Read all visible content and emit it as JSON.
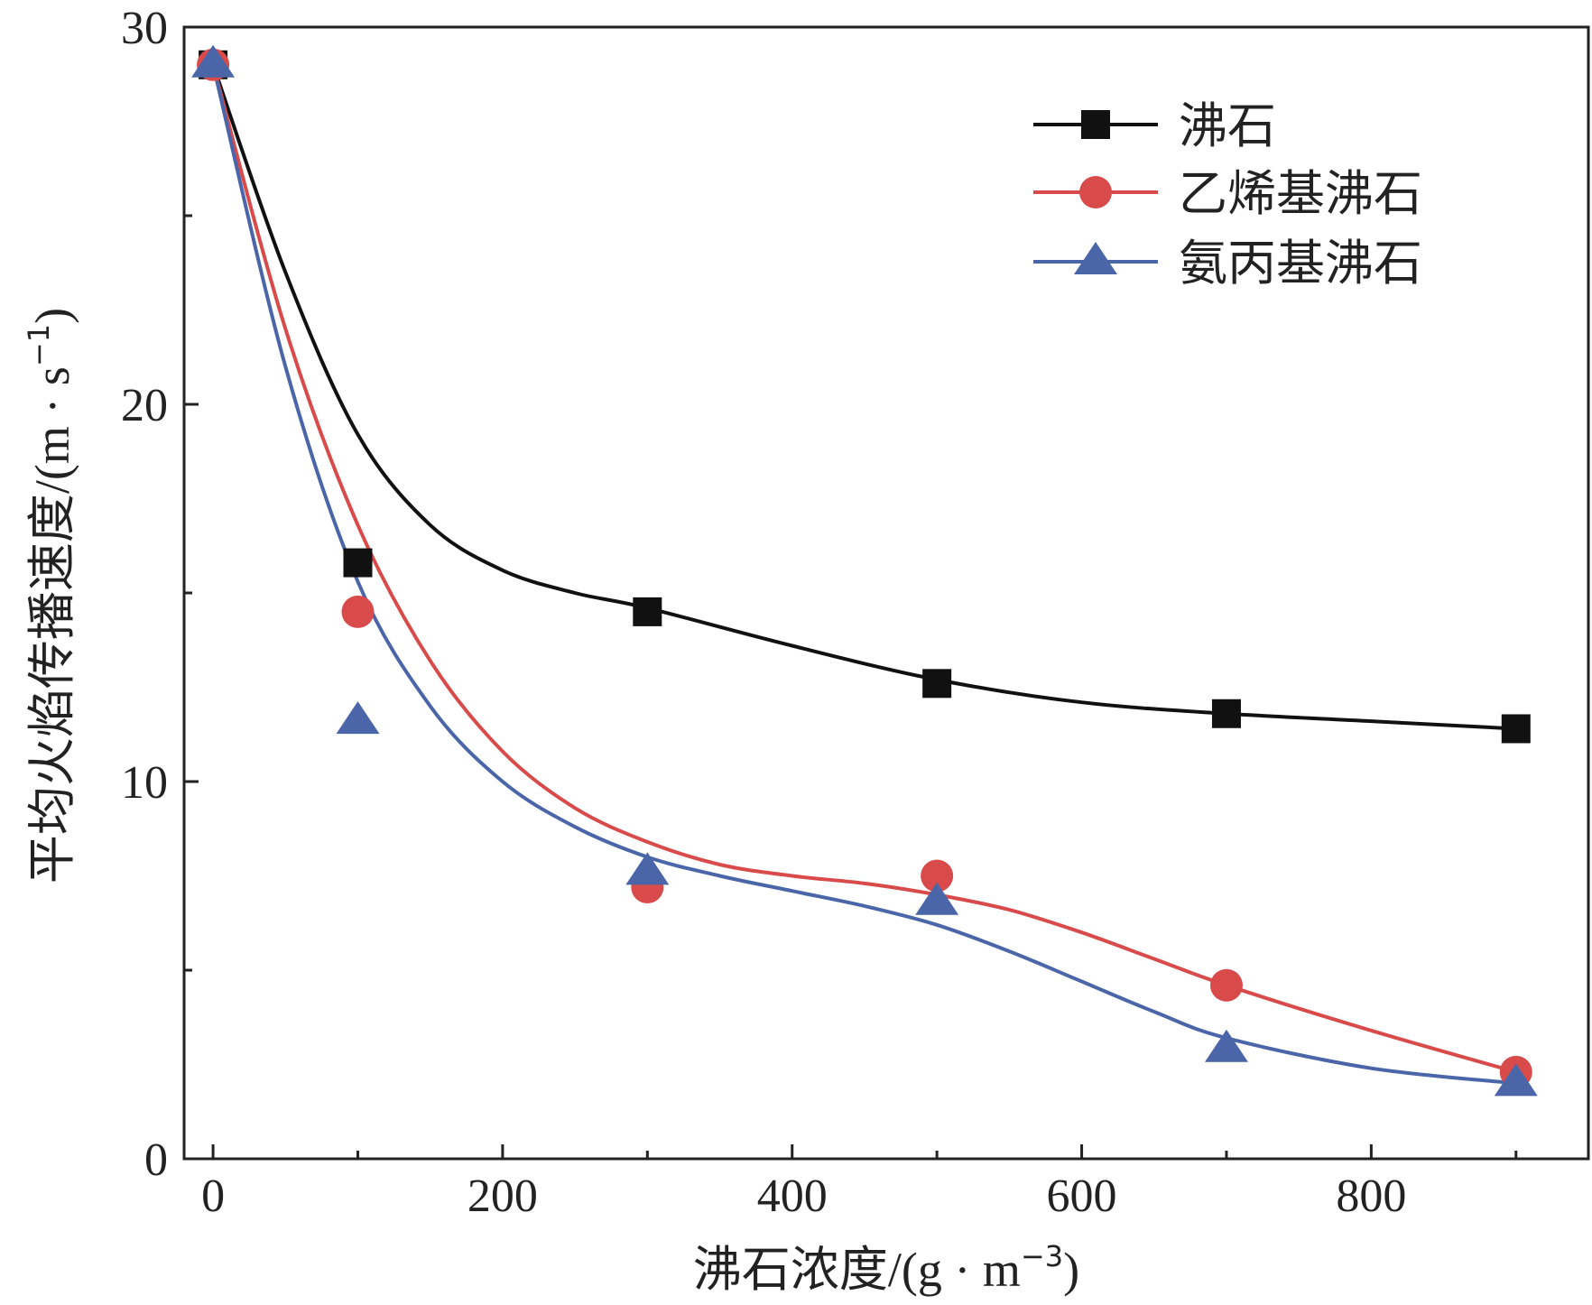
{
  "chart_data": {
    "type": "line",
    "title": "",
    "xlabel": {
      "text": "沸石浓度",
      "unit_open": "/(g · m",
      "unit_sup": "−3",
      "unit_close": ")"
    },
    "ylabel": {
      "text": "平均火焰传播速度",
      "unit_open": "/(m · s",
      "unit_sup": "−1",
      "unit_close": ")"
    },
    "xlim": [
      -20,
      950
    ],
    "ylim": [
      0,
      30
    ],
    "x_ticks": [
      0,
      200,
      400,
      600,
      800
    ],
    "x_tick_labels": [
      "0",
      "200",
      "400",
      "600",
      "800"
    ],
    "y_ticks": [
      0,
      10,
      20,
      30
    ],
    "y_tick_labels": [
      "0",
      "10",
      "20",
      "30"
    ],
    "y_minor_ticks": [
      5,
      15,
      25
    ],
    "x_minor_ticks": [
      100,
      300,
      500,
      700,
      900
    ],
    "legend_position": "top-right",
    "series": [
      {
        "name": "沸石",
        "color": "#111111",
        "marker": "square",
        "x": [
          0,
          100,
          300,
          500,
          700,
          900
        ],
        "y": [
          29.0,
          15.8,
          14.5,
          12.6,
          11.8,
          11.4
        ],
        "fit_x": [
          0,
          50,
          100,
          150,
          200,
          250,
          300,
          400,
          500,
          600,
          700,
          800,
          900
        ],
        "fit_y": [
          29.0,
          23.5,
          19.2,
          16.8,
          15.6,
          15.0,
          14.6,
          13.6,
          12.7,
          12.1,
          11.8,
          11.6,
          11.4
        ]
      },
      {
        "name": "乙烯基沸石",
        "color": "#d94b4b",
        "marker": "circle",
        "x": [
          0,
          100,
          300,
          500,
          700,
          900
        ],
        "y": [
          29.0,
          14.5,
          7.2,
          7.5,
          4.6,
          2.3
        ],
        "fit_x": [
          0,
          50,
          100,
          150,
          200,
          250,
          300,
          350,
          400,
          450,
          500,
          550,
          600,
          650,
          700,
          800,
          900
        ],
        "fit_y": [
          29.0,
          22.0,
          16.8,
          13.2,
          10.8,
          9.3,
          8.4,
          7.8,
          7.5,
          7.3,
          7.0,
          6.6,
          6.0,
          5.3,
          4.6,
          3.4,
          2.3
        ],
        "fit_y_note": "fit"
      },
      {
        "name": "氨丙基沸石",
        "color": "#4a66a8",
        "marker": "triangle",
        "x": [
          0,
          100,
          300,
          500,
          700,
          900
        ],
        "y": [
          29.0,
          11.6,
          7.6,
          6.8,
          2.9,
          2.0
        ],
        "fit_x": [
          0,
          50,
          100,
          150,
          200,
          250,
          300,
          350,
          400,
          450,
          500,
          550,
          600,
          650,
          700,
          800,
          900
        ],
        "fit_y": [
          29.0,
          21.0,
          15.3,
          12.0,
          10.0,
          8.8,
          8.0,
          7.5,
          7.1,
          6.7,
          6.2,
          5.5,
          4.7,
          3.9,
          3.2,
          2.4,
          2.0
        ]
      }
    ]
  }
}
